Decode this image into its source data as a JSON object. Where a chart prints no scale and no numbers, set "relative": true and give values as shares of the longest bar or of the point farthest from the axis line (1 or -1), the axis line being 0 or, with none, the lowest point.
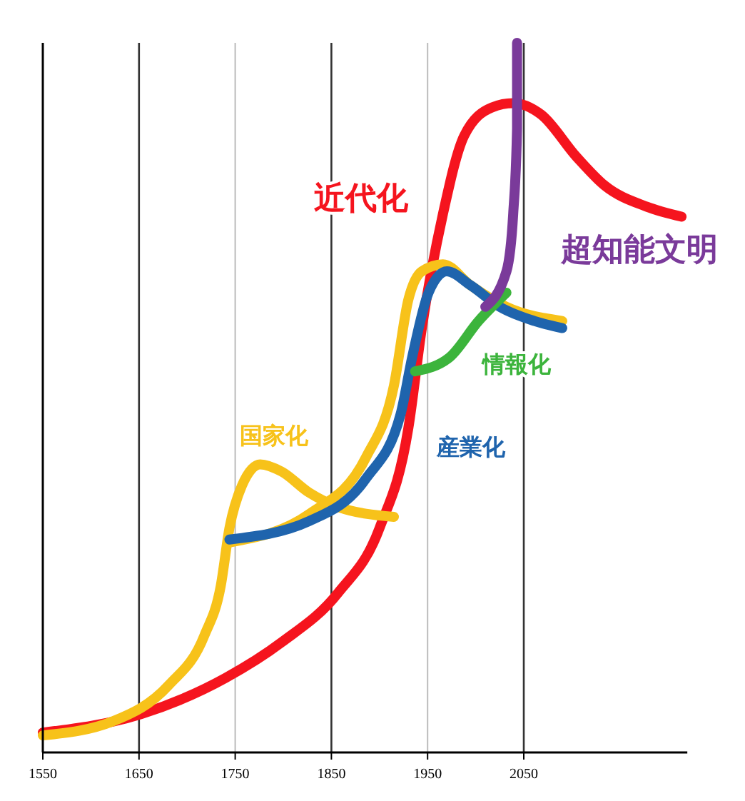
{
  "chart_data": {
    "type": "line",
    "relative": true,
    "xlim": [
      1550,
      2220
    ],
    "xticks": [
      1550,
      1650,
      1750,
      1850,
      1950,
      2050
    ],
    "grid": "x",
    "tick_labels": "x",
    "legend": false,
    "series": [
      {
        "name": "近代化",
        "color": "#f5141e",
        "x": [
          1550,
          1652,
          1740,
          1798,
          1857,
          1900,
          1930,
          1944,
          1966,
          1988,
          2017,
          2039,
          2068,
          2105,
          2134,
          2178,
          2214
        ],
        "values": [
          0.028,
          0.054,
          0.105,
          0.155,
          0.225,
          0.316,
          0.457,
          0.598,
          0.759,
          0.869,
          0.909,
          0.915,
          0.899,
          0.839,
          0.799,
          0.769,
          0.755
        ]
      },
      {
        "name": "国家化",
        "color": "#f7c21a",
        "x": [
          1550,
          1623,
          1681,
          1718,
          1735,
          1744,
          1757,
          1776,
          1798,
          1827,
          1857,
          1915
        ],
        "values": [
          0.024,
          0.044,
          0.095,
          0.165,
          0.235,
          0.316,
          0.376,
          0.406,
          0.396,
          0.366,
          0.346,
          0.332
        ]
      },
      {
        "color": "#f7c21a",
        "x": [
          1744,
          1827,
          1886,
          1915,
          1930,
          1944,
          1966,
          1995,
          2032,
          2090
        ],
        "values": [
          0.296,
          0.336,
          0.416,
          0.517,
          0.638,
          0.678,
          0.688,
          0.658,
          0.628,
          0.608
        ]
      },
      {
        "name": "産業化",
        "color": "#1f64ad",
        "x": [
          1744,
          1827,
          1886,
          1922,
          1934,
          1951,
          1970,
          1995,
          2025,
          2061,
          2090
        ],
        "values": [
          0.3,
          0.326,
          0.386,
          0.477,
          0.557,
          0.648,
          0.678,
          0.658,
          0.628,
          0.608,
          0.598
        ]
      },
      {
        "name": "情報化",
        "color": "#3cb43c",
        "x": [
          1937,
          1973,
          2003,
          2032
        ],
        "values": [
          0.537,
          0.557,
          0.608,
          0.648
        ]
      },
      {
        "name": "超知能文明",
        "color": "#7a3a9a",
        "x": [
          2010,
          2032,
          2039,
          2043,
          2043
        ],
        "values": [
          0.628,
          0.678,
          0.759,
          0.879,
          1
        ]
      }
    ]
  }
}
